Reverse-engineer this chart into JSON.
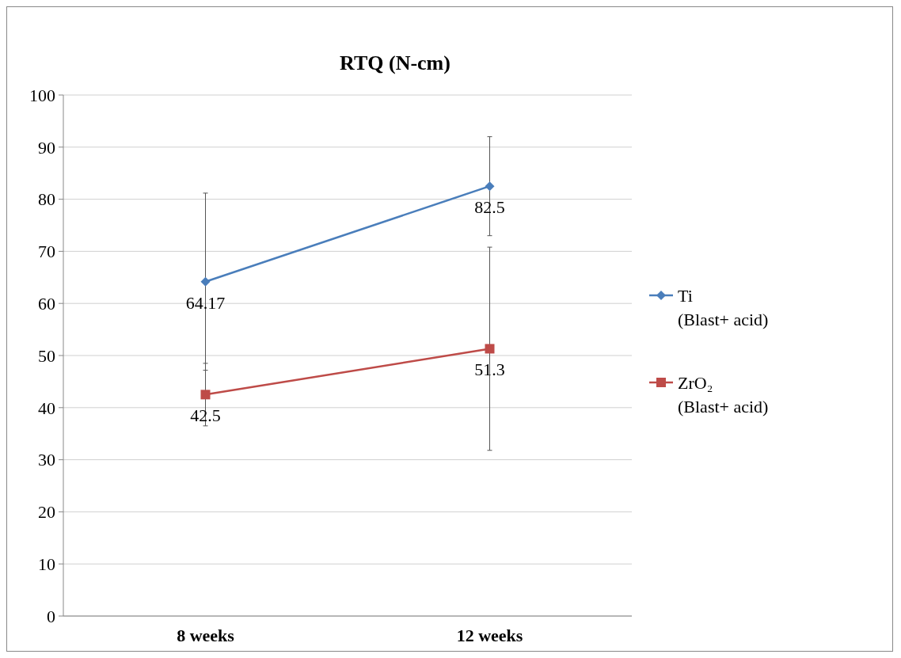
{
  "chart_data": {
    "type": "line",
    "title": "RTQ (N-cm)",
    "categories": [
      "8 weeks",
      "12 weeks"
    ],
    "series": [
      {
        "name": "Ti (Blast+ acid)",
        "color": "#4a7ebb",
        "marker": "diamond",
        "values": [
          64.17,
          82.5
        ],
        "errors": [
          17,
          9.5
        ]
      },
      {
        "name": "ZrO₂ (Blast+ acid)",
        "color": "#be4b48",
        "marker": "square",
        "values": [
          42.5,
          51.3
        ],
        "errors": [
          6,
          19.5
        ]
      }
    ],
    "ylim": [
      0,
      100
    ],
    "yticks": [
      0,
      10,
      20,
      30,
      40,
      50,
      60,
      70,
      80,
      90,
      100
    ],
    "grid": "y",
    "legend": "right",
    "data_labels": true
  }
}
